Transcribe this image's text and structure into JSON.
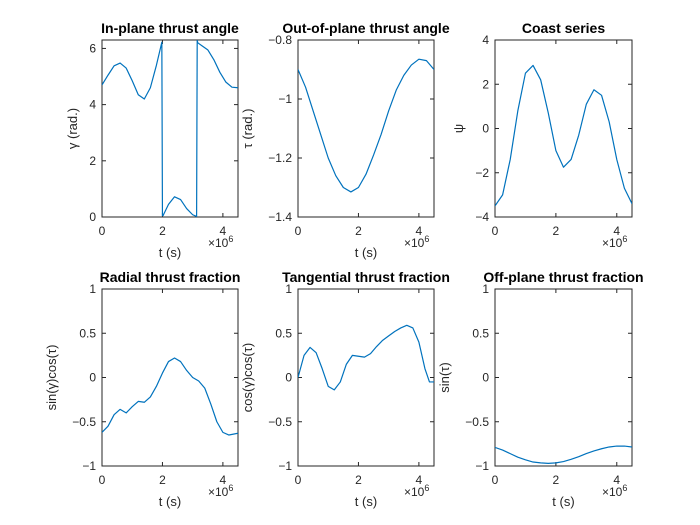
{
  "figure": {
    "line_color": "#0072BD",
    "background": "#ffffff"
  },
  "chart_data": [
    {
      "type": "line",
      "title": "In-plane thrust angle",
      "xlabel": "t (s)",
      "ylabel": "γ (rad.)",
      "x_multiplier": "×10",
      "x_multiplier_exp": "6",
      "xlim": [
        0,
        4.5
      ],
      "ylim": [
        0,
        6.3
      ],
      "xticks": [
        0,
        2,
        4
      ],
      "yticks": [
        0,
        2,
        4,
        6
      ],
      "grid": false,
      "series": [
        {
          "x": [
            0,
            0.2,
            0.4,
            0.6,
            0.8,
            1.0,
            1.2,
            1.4,
            1.6,
            1.8,
            1.98,
            2.0,
            2.02,
            2.2,
            2.4,
            2.6,
            2.8,
            3.0,
            3.13,
            3.15,
            3.17,
            3.3,
            3.5,
            3.7,
            3.9,
            4.1,
            4.3,
            4.5
          ],
          "y": [
            4.7,
            5.05,
            5.38,
            5.48,
            5.3,
            4.85,
            4.35,
            4.2,
            4.6,
            5.4,
            6.22,
            0.05,
            0.05,
            0.45,
            0.72,
            0.62,
            0.3,
            0.08,
            0.02,
            6.28,
            6.2,
            6.1,
            5.95,
            5.6,
            5.15,
            4.8,
            4.62,
            4.6
          ]
        }
      ]
    },
    {
      "type": "line",
      "title": "Out-of-plane thrust angle",
      "xlabel": "t (s)",
      "ylabel": "τ (rad.)",
      "x_multiplier": "×10",
      "x_multiplier_exp": "6",
      "xlim": [
        0,
        4.5
      ],
      "ylim": [
        -1.4,
        -0.8
      ],
      "xticks": [
        0,
        2,
        4
      ],
      "yticks": [
        -1.4,
        -1.2,
        -1,
        -0.8
      ],
      "grid": false,
      "series": [
        {
          "x": [
            0,
            0.25,
            0.5,
            0.75,
            1.0,
            1.25,
            1.5,
            1.75,
            2.0,
            2.25,
            2.5,
            2.75,
            3.0,
            3.25,
            3.5,
            3.75,
            4.0,
            4.25,
            4.5
          ],
          "y": [
            -0.9,
            -0.96,
            -1.04,
            -1.12,
            -1.2,
            -1.26,
            -1.3,
            -1.315,
            -1.3,
            -1.255,
            -1.19,
            -1.12,
            -1.04,
            -0.97,
            -0.92,
            -0.885,
            -0.865,
            -0.87,
            -0.9
          ]
        }
      ]
    },
    {
      "type": "line",
      "title": "Coast series",
      "xlabel": "",
      "ylabel": "ψ",
      "x_multiplier": "×10",
      "x_multiplier_exp": "6",
      "xlim": [
        0,
        4.5
      ],
      "ylim": [
        -4,
        4
      ],
      "xticks": [
        0,
        2,
        4
      ],
      "yticks": [
        -4,
        -2,
        0,
        2,
        4
      ],
      "grid": false,
      "series": [
        {
          "x": [
            0,
            0.25,
            0.5,
            0.75,
            1.0,
            1.25,
            1.5,
            1.75,
            2.0,
            2.25,
            2.5,
            2.75,
            3.0,
            3.25,
            3.5,
            3.75,
            4.0,
            4.25,
            4.5
          ],
          "y": [
            -3.5,
            -3.0,
            -1.4,
            0.8,
            2.5,
            2.85,
            2.2,
            0.7,
            -1.0,
            -1.75,
            -1.4,
            -0.3,
            1.1,
            1.75,
            1.5,
            0.3,
            -1.4,
            -2.7,
            -3.4
          ]
        }
      ]
    },
    {
      "type": "line",
      "title": "Radial thrust fraction",
      "xlabel": "t (s)",
      "ylabel": "sin(γ)cos(τ)",
      "x_multiplier": "×10",
      "x_multiplier_exp": "6",
      "xlim": [
        0,
        4.5
      ],
      "ylim": [
        -1,
        1
      ],
      "xticks": [
        0,
        2,
        4
      ],
      "yticks": [
        -1,
        -0.5,
        0,
        0.5,
        1
      ],
      "grid": false,
      "series": [
        {
          "x": [
            0,
            0.2,
            0.4,
            0.6,
            0.8,
            1.0,
            1.2,
            1.4,
            1.6,
            1.8,
            2.0,
            2.2,
            2.4,
            2.6,
            2.8,
            3.0,
            3.2,
            3.4,
            3.6,
            3.8,
            4.0,
            4.2,
            4.5
          ],
          "y": [
            -0.62,
            -0.55,
            -0.42,
            -0.36,
            -0.4,
            -0.33,
            -0.27,
            -0.28,
            -0.22,
            -0.1,
            0.05,
            0.18,
            0.22,
            0.18,
            0.08,
            -0.0,
            -0.04,
            -0.12,
            -0.3,
            -0.5,
            -0.62,
            -0.65,
            -0.63
          ]
        }
      ]
    },
    {
      "type": "line",
      "title": "Tangential thrust fraction",
      "xlabel": "t (s)",
      "ylabel": "cos(γ)cos(τ)",
      "x_multiplier": "×10",
      "x_multiplier_exp": "6",
      "xlim": [
        0,
        4.5
      ],
      "ylim": [
        -1,
        1
      ],
      "xticks": [
        0,
        2,
        4
      ],
      "yticks": [
        -1,
        -0.5,
        0,
        0.5,
        1
      ],
      "grid": false,
      "series": [
        {
          "x": [
            0,
            0.2,
            0.4,
            0.6,
            0.8,
            1.0,
            1.2,
            1.4,
            1.6,
            1.8,
            2.0,
            2.2,
            2.4,
            2.6,
            2.8,
            3.0,
            3.2,
            3.4,
            3.6,
            3.8,
            4.0,
            4.2,
            4.35,
            4.5
          ],
          "y": [
            0.0,
            0.25,
            0.34,
            0.28,
            0.1,
            -0.1,
            -0.14,
            -0.05,
            0.15,
            0.25,
            0.24,
            0.23,
            0.27,
            0.35,
            0.42,
            0.47,
            0.52,
            0.56,
            0.59,
            0.56,
            0.4,
            0.1,
            -0.05,
            -0.05
          ]
        }
      ]
    },
    {
      "type": "line",
      "title": "Off-plane thrust fraction",
      "xlabel": "t (s)",
      "ylabel": "sin(τ)",
      "x_multiplier": "×10",
      "x_multiplier_exp": "6",
      "xlim": [
        0,
        4.5
      ],
      "ylim": [
        -1,
        1
      ],
      "xticks": [
        0,
        2,
        4
      ],
      "yticks": [
        -1,
        -0.5,
        0,
        0.5,
        1
      ],
      "grid": false,
      "series": [
        {
          "x": [
            0,
            0.25,
            0.5,
            0.75,
            1.0,
            1.25,
            1.5,
            1.75,
            2.0,
            2.25,
            2.5,
            2.75,
            3.0,
            3.25,
            3.5,
            3.75,
            4.0,
            4.25,
            4.5
          ],
          "y": [
            -0.79,
            -0.82,
            -0.86,
            -0.9,
            -0.93,
            -0.955,
            -0.965,
            -0.97,
            -0.965,
            -0.95,
            -0.925,
            -0.895,
            -0.86,
            -0.83,
            -0.805,
            -0.785,
            -0.775,
            -0.775,
            -0.785
          ]
        }
      ]
    }
  ]
}
